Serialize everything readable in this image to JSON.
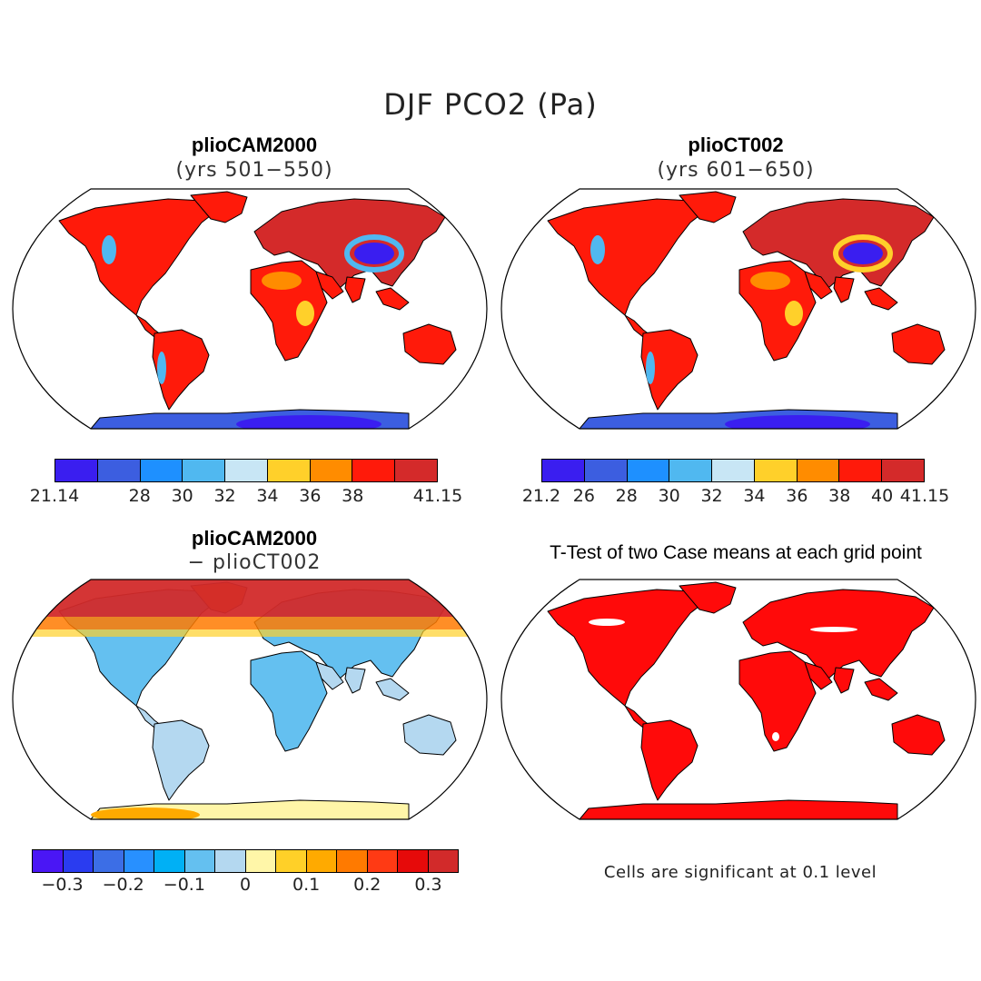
{
  "figure": {
    "title": "DJF PCO2 (Pa)"
  },
  "panels": [
    {
      "id": "a",
      "title": "plioCAM2000",
      "subtitle": "(yrs 501−550)",
      "kind": "field"
    },
    {
      "id": "b",
      "title": "plioCT002",
      "subtitle": "(yrs 601−650)",
      "kind": "field"
    },
    {
      "id": "c",
      "title": "plioCAM2000",
      "subtitle": "− plioCT002",
      "kind": "diff"
    },
    {
      "id": "d",
      "title": "T-Test of two Case means at each grid point",
      "subtitle": "",
      "kind": "ttest"
    }
  ],
  "colorbars": {
    "a": {
      "colors": [
        "#3a1ef0",
        "#3c5ee0",
        "#1e90ff",
        "#50b8f0",
        "#c8e6f5",
        "#ffd02a",
        "#ff8c00",
        "#ff1a0a",
        "#d42a2a"
      ],
      "labels": [
        "21.14",
        "28",
        "30",
        "32",
        "34",
        "36",
        "38",
        "41.15"
      ],
      "label_edges": [
        0,
        2,
        3,
        4,
        5,
        6,
        7,
        9
      ]
    },
    "b": {
      "colors": [
        "#3a1ef0",
        "#3c5ee0",
        "#1e90ff",
        "#50b8f0",
        "#c8e6f5",
        "#ffd02a",
        "#ff8c00",
        "#ff1a0a",
        "#d42a2a"
      ],
      "labels": [
        "21.2",
        "26",
        "28",
        "30",
        "32",
        "34",
        "36",
        "38",
        "40",
        "41.15"
      ],
      "label_edges": [
        0,
        1,
        2,
        3,
        4,
        5,
        6,
        7,
        8,
        9
      ]
    },
    "c": {
      "colors": [
        "#4a16f5",
        "#2a3cf0",
        "#3c6ee6",
        "#2890ff",
        "#00b0f5",
        "#64c0f0",
        "#b4d8f0",
        "#fff6a8",
        "#ffd028",
        "#ffaa00",
        "#ff7a00",
        "#ff3a14",
        "#e60a0a",
        "#d22a2a"
      ],
      "labels": [
        "−0.3",
        "−0.2",
        "−0.1",
        "0",
        "0.1",
        "0.2",
        "0.3"
      ],
      "label_edges": [
        1,
        3,
        5,
        7,
        9,
        11,
        13
      ]
    }
  },
  "ttest_note": "Cells are significant at 0.1 level",
  "map_colors": {
    "ocean": "#ffffff",
    "coast": "#000000",
    "field_dominant": "#ff1a0a",
    "field_dark": "#d42a2a",
    "field_orange": "#ff8c00",
    "field_yellow": "#ffd02a",
    "field_lightblue": "#50b8f0",
    "field_blue": "#3c5ee0",
    "field_violet": "#3a1ef0",
    "diff_lightblue": "#b4d8f0",
    "diff_blue": "#64c0f0",
    "diff_red": "#d22a2a",
    "diff_orange": "#ff7a00",
    "diff_yellow": "#fff6a8",
    "ttest_red": "#ff0a0a"
  }
}
